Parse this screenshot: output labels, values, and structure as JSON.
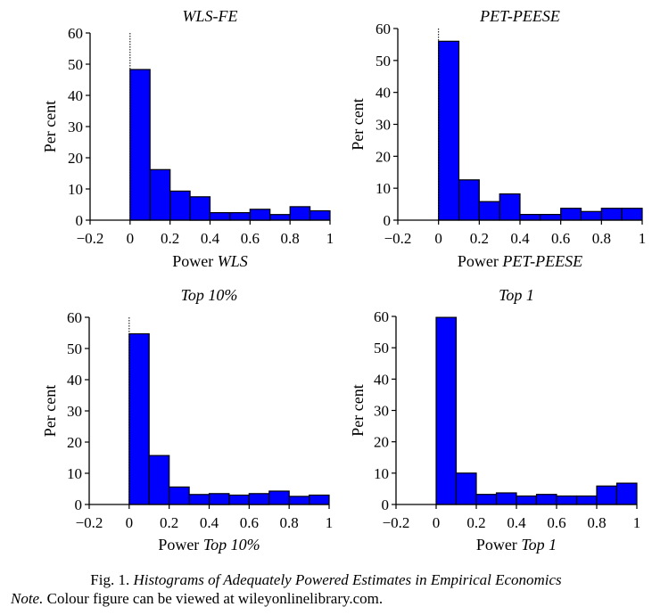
{
  "chart_data": [
    {
      "type": "bar",
      "title": "WLS-FE",
      "xlabel_prefix": "Power ",
      "xlabel_emph": "WLS",
      "ylabel": "Per cent",
      "xlim": [
        -0.2,
        1
      ],
      "ylim": [
        0,
        60
      ],
      "xticks": [
        -0.2,
        0,
        0.2,
        0.4,
        0.6,
        0.8,
        1
      ],
      "xtick_labels": [
        "−0.2",
        "0",
        "0.2",
        "0.4",
        "0.6",
        "0.8",
        "1"
      ],
      "yticks": [
        0,
        10,
        20,
        30,
        40,
        50,
        60
      ],
      "ytick_labels": [
        "0",
        "10",
        "20",
        "30",
        "40",
        "50",
        "60"
      ],
      "bin_edges": [
        0,
        0.1,
        0.2,
        0.3,
        0.4,
        0.5,
        0.6,
        0.7,
        0.8,
        0.9,
        1.0
      ],
      "values": [
        48.3,
        16.2,
        9.3,
        7.5,
        2.4,
        2.4,
        3.5,
        1.8,
        4.3,
        3.0
      ],
      "reference_line_x": 0
    },
    {
      "type": "bar",
      "title": "PET-PEESE",
      "xlabel_prefix": "Power ",
      "xlabel_emph": "PET-PEESE",
      "ylabel": "Per cent",
      "xlim": [
        -0.2,
        1
      ],
      "ylim": [
        0,
        60
      ],
      "xticks": [
        -0.2,
        0,
        0.2,
        0.4,
        0.6,
        0.8,
        1
      ],
      "xtick_labels": [
        "−0.2",
        "0",
        "0.2",
        "0.4",
        "0.6",
        "0.8",
        "1"
      ],
      "yticks": [
        0,
        10,
        20,
        30,
        40,
        50,
        60
      ],
      "ytick_labels": [
        "0",
        "10",
        "20",
        "30",
        "40",
        "50",
        "60"
      ],
      "bin_edges": [
        0,
        0.1,
        0.2,
        0.3,
        0.4,
        0.5,
        0.6,
        0.7,
        0.8,
        0.9,
        1.0
      ],
      "values": [
        56.0,
        12.6,
        5.8,
        8.2,
        1.8,
        1.8,
        3.7,
        2.7,
        3.7,
        3.7
      ],
      "reference_line_x": 0
    },
    {
      "type": "bar",
      "title": "Top 10%",
      "xlabel_prefix": "Power ",
      "xlabel_emph": "Top 10%",
      "ylabel": "Per cent",
      "xlim": [
        -0.2,
        1
      ],
      "ylim": [
        0,
        60
      ],
      "xticks": [
        -0.2,
        0,
        0.2,
        0.4,
        0.6,
        0.8,
        1
      ],
      "xtick_labels": [
        "−0.2",
        "0",
        "0.2",
        "0.4",
        "0.6",
        "0.8",
        "1"
      ],
      "yticks": [
        0,
        10,
        20,
        30,
        40,
        50,
        60
      ],
      "ytick_labels": [
        "0",
        "10",
        "20",
        "30",
        "40",
        "50",
        "60"
      ],
      "bin_edges": [
        0,
        0.1,
        0.2,
        0.3,
        0.4,
        0.5,
        0.6,
        0.7,
        0.8,
        0.9,
        1.0
      ],
      "values": [
        54.7,
        15.7,
        5.6,
        3.2,
        3.5,
        3.0,
        3.5,
        4.3,
        2.6,
        3.0
      ],
      "reference_line_x": 0
    },
    {
      "type": "bar",
      "title": "Top 1",
      "xlabel_prefix": "Power ",
      "xlabel_emph": "Top 1",
      "ylabel": "Per cent",
      "xlim": [
        -0.2,
        1
      ],
      "ylim": [
        0,
        60
      ],
      "xticks": [
        -0.2,
        0,
        0.2,
        0.4,
        0.6,
        0.8,
        1
      ],
      "xtick_labels": [
        "−0.2",
        "0",
        "0.2",
        "0.4",
        "0.6",
        "0.8",
        "1"
      ],
      "yticks": [
        0,
        10,
        20,
        30,
        40,
        50,
        60
      ],
      "ytick_labels": [
        "0",
        "10",
        "20",
        "30",
        "40",
        "50",
        "60"
      ],
      "bin_edges": [
        0,
        0.1,
        0.2,
        0.3,
        0.4,
        0.5,
        0.6,
        0.7,
        0.8,
        0.9,
        1.0
      ],
      "values": [
        59.7,
        10.0,
        3.2,
        3.7,
        2.7,
        3.2,
        2.7,
        2.7,
        5.9,
        6.8
      ],
      "reference_line_x": null
    }
  ],
  "colors": {
    "bar_fill": "#0000ff",
    "bar_stroke": "#000000"
  },
  "caption": {
    "fig_label": "Fig. 1.",
    "fig_title": "Histograms of Adequately Powered Estimates in Empirical Economics",
    "note_label": "Note.",
    "note_text": "Colour figure can be viewed at wileyonlinelibrary.com."
  }
}
